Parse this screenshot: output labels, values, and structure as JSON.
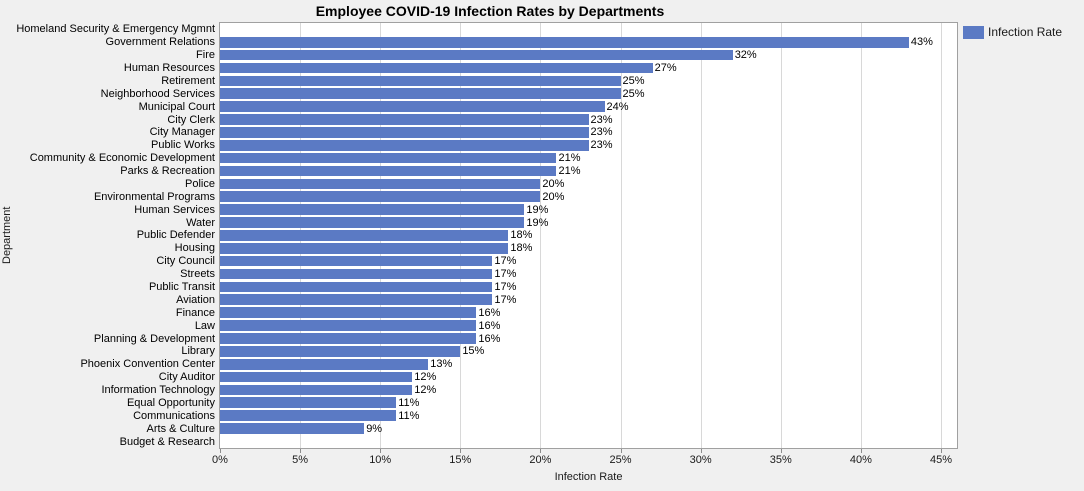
{
  "colors": {
    "bar": "#5b7ac4",
    "grid": "#d8d8d8",
    "plot_border": "#a0a0a0",
    "plot_bg": "#ffffff",
    "page_bg": "#f0f0f0",
    "text": "#000000"
  },
  "chart_data": {
    "type": "bar",
    "orientation": "horizontal",
    "title": "Employee COVID-19 Infection Rates by Departments",
    "xlabel": "Infection Rate",
    "ylabel": "Department",
    "legend": {
      "position": "top-right",
      "entries": [
        {
          "label": "Infection Rate",
          "color": "#5b7ac4"
        }
      ]
    },
    "x_axis": {
      "min": 0,
      "max": 46,
      "ticks": [
        0,
        5,
        10,
        15,
        20,
        25,
        30,
        35,
        40,
        45
      ],
      "tick_labels": [
        "0%",
        "5%",
        "10%",
        "15%",
        "20%",
        "25%",
        "30%",
        "35%",
        "40%",
        "45%"
      ],
      "grid": true
    },
    "categories": [
      "Homeland Security & Emergency Mgmnt",
      "Government Relations",
      "Fire",
      "Human Resources",
      "Retirement",
      "Neighborhood Services",
      "Municipal Court",
      "City Clerk",
      "City Manager",
      "Public Works",
      "Community & Economic Development",
      "Parks & Recreation",
      "Police",
      "Environmental Programs",
      "Human Services",
      "Water",
      "Public Defender",
      "Housing",
      "City Council",
      "Streets",
      "Public Transit",
      "Aviation",
      "Finance",
      "Law",
      "Planning & Development",
      "Library",
      "Phoenix Convention Center",
      "City Auditor",
      "Information Technology",
      "Equal Opportunity",
      "Communications",
      "Arts & Culture",
      "Budget & Research"
    ],
    "values": [
      null,
      43,
      32,
      27,
      25,
      25,
      24,
      23,
      23,
      23,
      21,
      21,
      20,
      20,
      19,
      19,
      18,
      18,
      17,
      17,
      17,
      17,
      16,
      16,
      16,
      15,
      13,
      12,
      12,
      11,
      11,
      9,
      null
    ],
    "value_label_suffix": "%"
  }
}
